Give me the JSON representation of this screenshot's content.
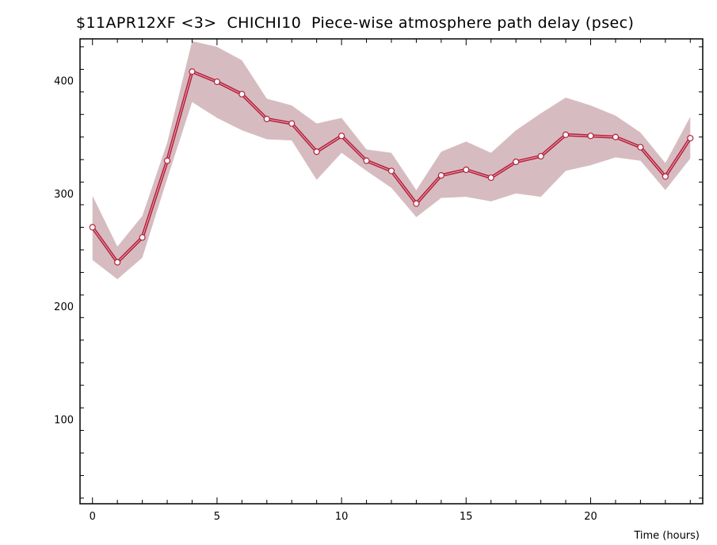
{
  "chart_data": {
    "type": "line",
    "title": "$11APR12XF <3>  CHICHI10  Piece-wise atmosphere path delay (psec)",
    "xlabel": "Time (hours)",
    "ylabel": "",
    "xlim": [
      -0.5,
      24.5
    ],
    "ylim": [
      25,
      437
    ],
    "x_ticks": [
      0,
      5,
      10,
      15,
      20
    ],
    "y_ticks": [
      100,
      200,
      300,
      400
    ],
    "grid": false,
    "colors": {
      "line": "#b5203d",
      "band": "#d6bcc0",
      "marker_fill": "#ffffff",
      "axis": "#000000"
    },
    "series": [
      {
        "x": [
          0,
          1,
          2,
          3,
          4,
          5,
          6,
          7,
          8,
          9,
          10,
          11,
          12,
          13,
          14,
          15,
          16,
          17,
          18,
          19,
          20,
          21,
          22,
          23,
          24
        ],
        "values": [
          270,
          239,
          261,
          329,
          408,
          399,
          388,
          366,
          362,
          337,
          351,
          329,
          320,
          291,
          316,
          321,
          314,
          328,
          333,
          352,
          351,
          350,
          341,
          315,
          349
        ],
        "upper": [
          298,
          253,
          280,
          345,
          435,
          430,
          418,
          384,
          378,
          362,
          367,
          339,
          336,
          303,
          337,
          346,
          336,
          356,
          371,
          385,
          378,
          369,
          354,
          327,
          368
        ],
        "lower": [
          241,
          224,
          243,
          313,
          381,
          367,
          356,
          348,
          347,
          312,
          336,
          320,
          305,
          279,
          296,
          297,
          293,
          300,
          297,
          320,
          325,
          332,
          329,
          303,
          331
        ]
      }
    ]
  }
}
